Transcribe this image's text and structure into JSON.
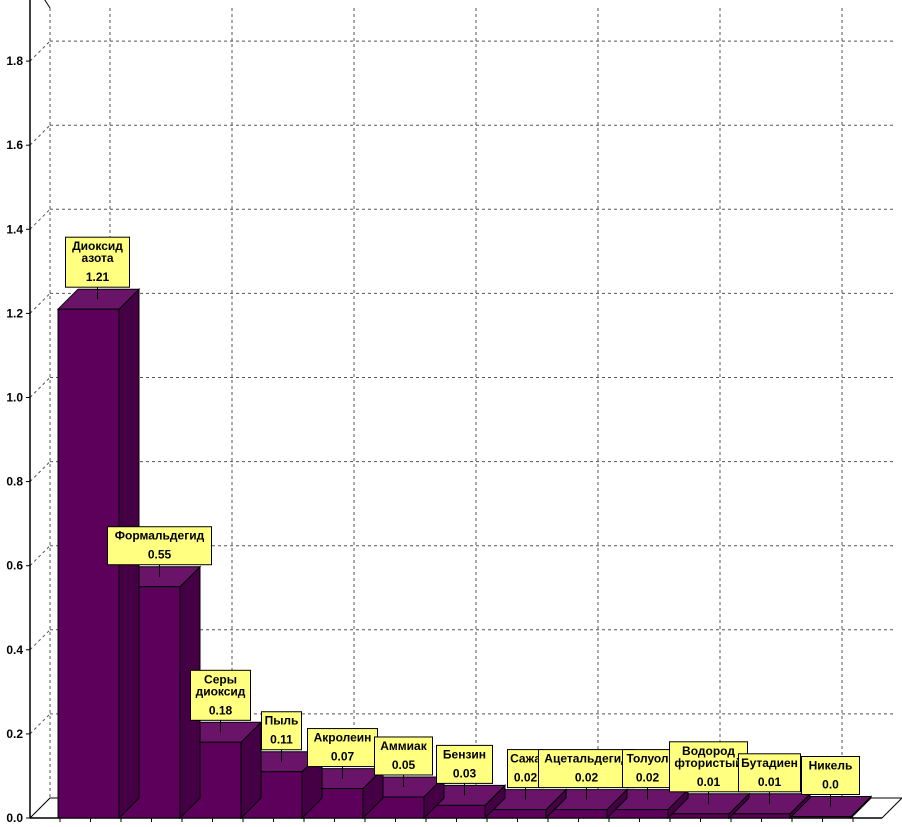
{
  "chart_data": {
    "type": "bar",
    "title": "",
    "xlabel": "",
    "ylabel": "",
    "ylim": [
      0,
      2.0
    ],
    "yticks": [
      "0.0",
      "0.2",
      "0.4",
      "0.6",
      "0.8",
      "1.0",
      "1.2",
      "1.4",
      "1.6",
      "1.8",
      "2.0"
    ],
    "grid": true,
    "bar_color": "#5c005c",
    "label_box_color": "#ffff80",
    "categories": [
      [
        "Диоксид",
        "азота"
      ],
      [
        "Формальдегид"
      ],
      [
        "Серы",
        "диоксид"
      ],
      [
        "Пыль"
      ],
      [
        "Акролеин"
      ],
      [
        "Аммиак"
      ],
      [
        "Бензин"
      ],
      [
        "Сажа"
      ],
      [
        "Ацетальдегид"
      ],
      [
        "Толуол"
      ],
      [
        "Водород",
        "фтористый"
      ],
      [
        "Бутадиен"
      ],
      [
        "Никель"
      ]
    ],
    "values": [
      1.21,
      0.55,
      0.18,
      0.11,
      0.07,
      0.05,
      0.03,
      0.02,
      0.02,
      0.02,
      0.01,
      0.01,
      0.0
    ],
    "value_labels": [
      "1.21",
      "0.55",
      "0.18",
      "0.11",
      "0.07",
      "0.05",
      "0.03",
      "0.02",
      "0.02",
      "0.02",
      "0.01",
      "0.01",
      "0.0"
    ]
  }
}
